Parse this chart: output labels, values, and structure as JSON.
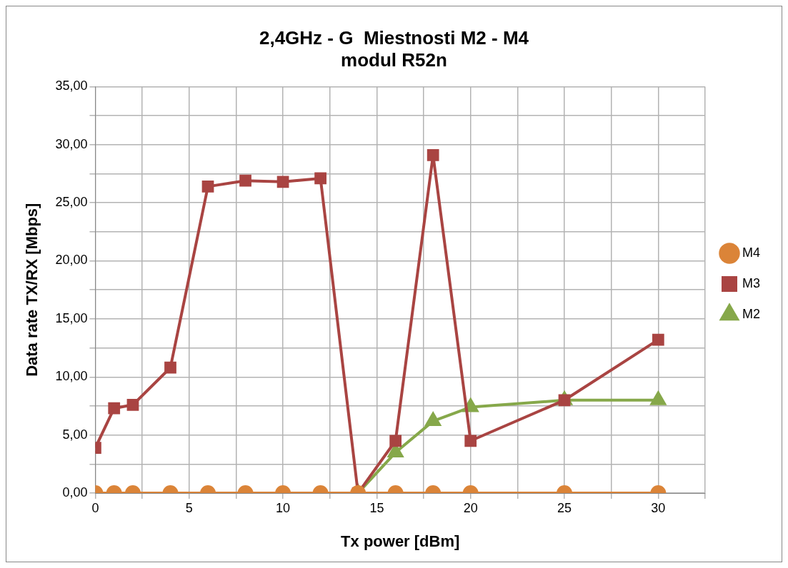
{
  "chart_data": {
    "type": "line",
    "title": [
      "2,4GHz - G  Miestnosti M2 - M4",
      "modul R52n"
    ],
    "xlabel": "Tx power [dBm]",
    "ylabel": "Data rate TX/RX [Mbps]",
    "x": [
      0,
      1,
      2,
      4,
      6,
      8,
      10,
      12,
      14,
      16,
      18,
      20,
      25,
      30
    ],
    "series": [
      {
        "name": "M2",
        "color": "#86a84a",
        "marker": "triangle",
        "x": [
          14,
          16,
          18,
          20,
          25,
          30
        ],
        "values": [
          0,
          3.5,
          6.2,
          7.4,
          8.0,
          8.0
        ]
      },
      {
        "name": "M3",
        "color": "#a94442",
        "marker": "square",
        "values": [
          3.9,
          7.3,
          7.6,
          10.8,
          26.4,
          26.9,
          26.8,
          27.1,
          0,
          4.5,
          29.1,
          4.5,
          8.0,
          13.2
        ]
      },
      {
        "name": "M4",
        "color": "#db8438",
        "marker": "circle",
        "values": [
          0,
          0,
          0,
          0,
          0,
          0,
          0,
          0,
          0,
          0,
          0,
          0,
          0,
          0
        ]
      }
    ],
    "xlim": [
      0,
      32.5
    ],
    "xticks": [
      0,
      {
        "value": 2.5,
        "label": null
      },
      5,
      {
        "value": 7.5,
        "label": null
      },
      10,
      {
        "value": 12.5,
        "label": null
      },
      15,
      {
        "value": 17.5,
        "label": null
      },
      20,
      {
        "value": 22.5,
        "label": null
      },
      25,
      {
        "value": 27.5,
        "label": null
      },
      30,
      {
        "value": 32.5,
        "label": null
      }
    ],
    "ylim": [
      0,
      35
    ],
    "yticks": [
      {
        "value": 0,
        "label": "0,00"
      },
      {
        "value": 2.5,
        "label": null
      },
      {
        "value": 5,
        "label": "5,00"
      },
      {
        "value": 7.5,
        "label": null
      },
      {
        "value": 10,
        "label": "10,00"
      },
      {
        "value": 12.5,
        "label": null
      },
      {
        "value": 15,
        "label": "15,00"
      },
      {
        "value": 17.5,
        "label": null
      },
      {
        "value": 20,
        "label": "20,00"
      },
      {
        "value": 22.5,
        "label": null
      },
      {
        "value": 25,
        "label": "25,00"
      },
      {
        "value": 27.5,
        "label": null
      },
      {
        "value": 30,
        "label": "30,00"
      },
      {
        "value": 32.5,
        "label": null
      },
      {
        "value": 35,
        "label": "35,00"
      }
    ],
    "grid": true,
    "legend": "right",
    "line_style": "solid"
  }
}
